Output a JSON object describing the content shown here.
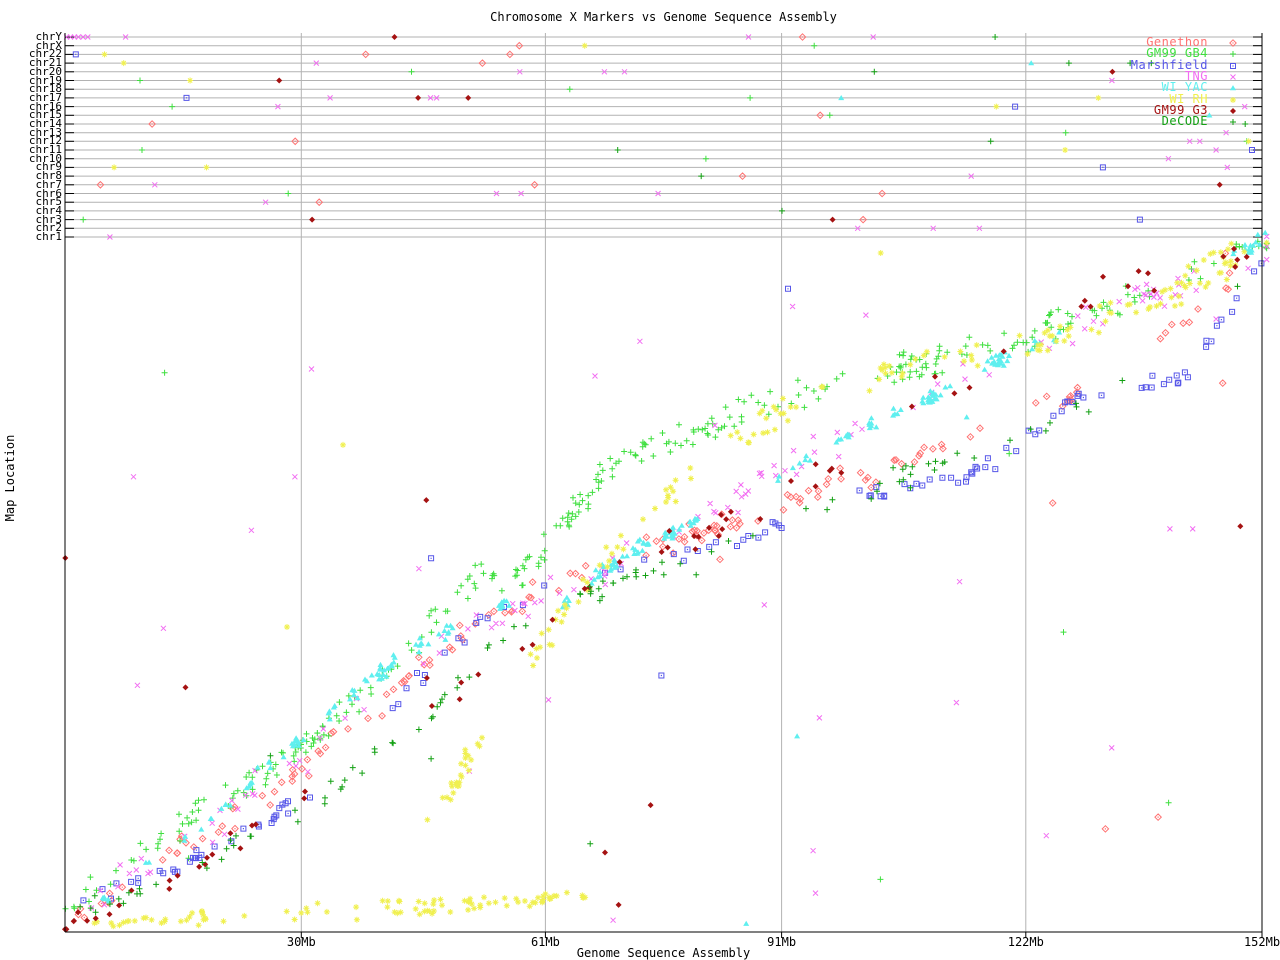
{
  "title": "Chromosome X Markers vs Genome Sequence Assembly",
  "axes": {
    "x_label": "Genome Sequence Assembly",
    "y_label": "Map Location",
    "x_max_mb": 152,
    "x_ticks": [
      {
        "mb": 30,
        "label": "30Mb"
      },
      {
        "mb": 61,
        "label": "61Mb"
      },
      {
        "mb": 91,
        "label": "91Mb"
      },
      {
        "mb": 122,
        "label": "122Mb"
      },
      {
        "mb": 152,
        "label": "152Mb"
      }
    ],
    "x_gridlines_mb": [
      30,
      61,
      91,
      122
    ]
  },
  "chromosomes": [
    "chrY",
    "chrX",
    "chr22",
    "chr21",
    "chr20",
    "chr19",
    "chr18",
    "chr17",
    "chr16",
    "chr15",
    "chr14",
    "chr13",
    "chr12",
    "chr11",
    "chr10",
    "chr9",
    "chr8",
    "chr7",
    "chr6",
    "chr5",
    "chr4",
    "chr3",
    "chr2",
    "chr1"
  ],
  "colors": {
    "axis": "#000000",
    "grid": "#b2b2b2",
    "background": "#ffffff"
  },
  "chart_data": {
    "type": "scatter",
    "title": "Chromosome X Markers vs Genome Sequence Assembly",
    "xlabel": "Genome Sequence Assembly",
    "ylabel": "Map Location",
    "x_range_mb": [
      0,
      152
    ],
    "y_range_frac": [
      0,
      1
    ],
    "legend_position": "top-right",
    "series": [
      {
        "name": "genethon",
        "label": "Genethon",
        "color": "#ff7272",
        "symbol": "open-diamond-dot",
        "in_legend": true,
        "n": 150,
        "jx": 1.8,
        "jy": 0.022,
        "run": 4,
        "spread": 2.5,
        "random_outliers": 6,
        "band_weight": 0.13,
        "trend": [
          [
            0,
            0.02
          ],
          [
            10,
            0.085
          ],
          [
            20,
            0.155
          ],
          [
            30,
            0.235
          ],
          [
            40,
            0.33
          ],
          [
            48,
            0.41
          ],
          [
            55,
            0.46
          ],
          [
            62,
            0.5
          ],
          [
            70,
            0.535
          ],
          [
            78,
            0.565
          ],
          [
            88,
            0.6
          ],
          [
            95,
            0.63
          ],
          [
            102,
            0.66
          ],
          [
            110,
            0.7
          ],
          [
            118,
            0.74
          ],
          [
            126,
            0.765
          ],
          [
            133,
            0.785
          ],
          [
            139,
            0.845
          ],
          [
            145,
            0.905
          ],
          [
            149,
            0.945
          ],
          [
            152,
            0.97
          ]
        ]
      },
      {
        "name": "gm99_gb4",
        "label": "GM99 GB4",
        "color": "#3fdf3f",
        "symbol": "plus",
        "in_legend": true,
        "n": 330,
        "jx": 1.4,
        "jy": 0.028,
        "run": 6,
        "spread": 2.2,
        "random_outliers": 8,
        "band_weight": 0.22,
        "trend": [
          [
            0,
            0.045
          ],
          [
            8,
            0.1
          ],
          [
            16,
            0.165
          ],
          [
            24,
            0.225
          ],
          [
            31,
            0.275
          ],
          [
            38,
            0.345
          ],
          [
            45,
            0.425
          ],
          [
            50,
            0.485
          ],
          [
            53,
            0.52
          ],
          [
            56,
            0.5
          ],
          [
            60,
            0.545
          ],
          [
            64,
            0.6
          ],
          [
            68,
            0.655
          ],
          [
            72,
            0.685
          ],
          [
            76,
            0.7
          ],
          [
            81,
            0.72
          ],
          [
            86,
            0.745
          ],
          [
            91,
            0.765
          ],
          [
            96,
            0.785
          ],
          [
            102,
            0.8
          ],
          [
            109,
            0.82
          ],
          [
            116,
            0.845
          ],
          [
            123,
            0.865
          ],
          [
            131,
            0.895
          ],
          [
            139,
            0.925
          ],
          [
            146,
            0.955
          ],
          [
            152,
            0.995
          ]
        ]
      },
      {
        "name": "marshfield",
        "label": "Marshfield",
        "color": "#5656e8",
        "symbol": "open-square-dot",
        "in_legend": true,
        "n": 125,
        "jx": 1.6,
        "jy": 0.014,
        "run": 5,
        "spread": 3.0,
        "random_outliers": 3,
        "band_weight": 0.07,
        "trend": [
          [
            0,
            0.035
          ],
          [
            10,
            0.075
          ],
          [
            20,
            0.125
          ],
          [
            30,
            0.19
          ],
          [
            38,
            0.27
          ],
          [
            45,
            0.365
          ],
          [
            50,
            0.425
          ],
          [
            56,
            0.465
          ],
          [
            62,
            0.5
          ],
          [
            70,
            0.525
          ],
          [
            78,
            0.545
          ],
          [
            86,
            0.565
          ],
          [
            93,
            0.605
          ],
          [
            100,
            0.63
          ],
          [
            108,
            0.645
          ],
          [
            116,
            0.66
          ],
          [
            124,
            0.73
          ],
          [
            129,
            0.775
          ],
          [
            136,
            0.78
          ],
          [
            142,
            0.8
          ],
          [
            147,
            0.875
          ],
          [
            152,
            0.965
          ]
        ]
      },
      {
        "name": "tng",
        "label": "TNG",
        "color": "#f26df2",
        "symbol": "cross",
        "in_legend": true,
        "n": 125,
        "jx": 2.8,
        "jy": 0.035,
        "run": 4,
        "spread": 3.0,
        "random_outliers": 10,
        "band_weight": 0.24,
        "outlier_points": [
          [
            8.7,
            0.655
          ],
          [
            29.2,
            0.655
          ],
          [
            31.3,
            0.81
          ],
          [
            73,
            0.85
          ],
          [
            67.3,
            0.8
          ],
          [
            92.4,
            0.9
          ],
          [
            61.4,
            0.334
          ],
          [
            69.6,
            0.017
          ],
          [
            95.8,
            0.308
          ],
          [
            95,
            0.117
          ],
          [
            95.3,
            0.056
          ],
          [
            113.2,
            0.33
          ],
          [
            140.3,
            0.58
          ],
          [
            143.2,
            0.58
          ],
          [
            12.5,
            0.437
          ],
          [
            9.2,
            0.355
          ]
        ],
        "trend": [
          [
            0,
            0.015
          ],
          [
            12,
            0.1
          ],
          [
            24,
            0.2
          ],
          [
            34,
            0.29
          ],
          [
            44,
            0.38
          ],
          [
            54,
            0.445
          ],
          [
            64,
            0.5
          ],
          [
            74,
            0.56
          ],
          [
            84,
            0.62
          ],
          [
            94,
            0.68
          ],
          [
            104,
            0.74
          ],
          [
            114,
            0.8
          ],
          [
            124,
            0.85
          ],
          [
            134,
            0.9
          ],
          [
            144,
            0.95
          ],
          [
            152,
            0.99
          ]
        ]
      },
      {
        "name": "wi_yac",
        "label": "WI YAC",
        "color": "#5fefef",
        "symbol": "filled-triangle",
        "in_legend": true,
        "n": 240,
        "jx": 0.7,
        "jy": 0.012,
        "run": 9,
        "spread": 0.8,
        "random_outliers": 2,
        "band_weight": 0.06,
        "outlier_points": [
          [
            86.5,
            0.012
          ]
        ],
        "trend": [
          [
            0,
            0.008
          ],
          [
            10,
            0.09
          ],
          [
            21,
            0.19
          ],
          [
            31,
            0.29
          ],
          [
            43,
            0.4
          ],
          [
            52,
            0.455
          ],
          [
            56,
            0.47
          ],
          [
            61,
            0.445
          ],
          [
            66,
            0.5
          ],
          [
            72,
            0.55
          ],
          [
            80,
            0.59
          ],
          [
            88,
            0.63
          ],
          [
            93,
            0.675
          ],
          [
            100,
            0.72
          ],
          [
            108,
            0.76
          ],
          [
            118,
            0.82
          ],
          [
            127,
            0.86
          ],
          [
            136,
            0.91
          ],
          [
            145,
            0.955
          ],
          [
            152,
            0.995
          ]
        ]
      },
      {
        "name": "wi_rh",
        "label": "WI RH",
        "color": "#f0f050",
        "symbol": "asterisk",
        "in_legend": true,
        "n": 175,
        "jx": 1.6,
        "jy": 0.03,
        "run": 7,
        "spread": 2.0,
        "random_outliers": 3,
        "band_weight": 0.09,
        "trend": [
          [
            44,
            0.14
          ],
          [
            50,
            0.22
          ],
          [
            54,
            0.3
          ],
          [
            57,
            0.36
          ],
          [
            60,
            0.4
          ],
          [
            64,
            0.47
          ],
          [
            68,
            0.53
          ],
          [
            72,
            0.58
          ],
          [
            76,
            0.62
          ],
          [
            80,
            0.66
          ],
          [
            85,
            0.7
          ],
          [
            90,
            0.74
          ],
          [
            95,
            0.77
          ],
          [
            102,
            0.8
          ],
          [
            110,
            0.82
          ],
          [
            118,
            0.835
          ],
          [
            126,
            0.855
          ],
          [
            134,
            0.89
          ],
          [
            142,
            0.93
          ],
          [
            147,
            0.96
          ],
          [
            152,
            0.99
          ]
        ]
      },
      {
        "name": "wi_rh_low",
        "label": "",
        "color": "#f0f050",
        "symbol": "asterisk",
        "in_legend": false,
        "n": 95,
        "jx": 2.0,
        "jy": 0.013,
        "run": 7,
        "spread": 3.0,
        "random_outliers": 0,
        "band_weight": 0,
        "trend": [
          [
            0,
            0.01
          ],
          [
            15,
            0.02
          ],
          [
            30,
            0.03
          ],
          [
            45,
            0.035
          ],
          [
            58,
            0.045
          ],
          [
            67,
            0.05
          ]
        ]
      },
      {
        "name": "gm99_g3",
        "label": "GM99 G3",
        "color": "#a51212",
        "symbol": "filled-diamond",
        "in_legend": true,
        "n": 72,
        "jx": 2.6,
        "jy": 0.03,
        "run": 3,
        "spread": 2.5,
        "random_outliers": 5,
        "band_weight": 0.11,
        "outlier_points": [
          [
            70.3,
            0.039
          ],
          [
            15.3,
            0.352
          ]
        ],
        "trend": [
          [
            0,
            0.012
          ],
          [
            15,
            0.09
          ],
          [
            25,
            0.16
          ],
          [
            35,
            0.24
          ],
          [
            45,
            0.33
          ],
          [
            55,
            0.385
          ],
          [
            65,
            0.48
          ],
          [
            75,
            0.55
          ],
          [
            85,
            0.6
          ],
          [
            95,
            0.655
          ],
          [
            105,
            0.74
          ],
          [
            115,
            0.82
          ],
          [
            125,
            0.88
          ],
          [
            133,
            0.93
          ],
          [
            140,
            0.95
          ],
          [
            146,
            0.97
          ],
          [
            152,
            0.985
          ]
        ]
      },
      {
        "name": "decode",
        "label": "DeCODE",
        "color": "#12a012",
        "symbol": "plus",
        "in_legend": true,
        "n": 105,
        "jx": 1.6,
        "jy": 0.02,
        "run": 4,
        "spread": 2.8,
        "random_outliers": 3,
        "band_weight": 0.08,
        "trend": [
          [
            0,
            0.028
          ],
          [
            10,
            0.062
          ],
          [
            20,
            0.11
          ],
          [
            30,
            0.17
          ],
          [
            40,
            0.26
          ],
          [
            48,
            0.335
          ],
          [
            55,
            0.42
          ],
          [
            62,
            0.465
          ],
          [
            70,
            0.5
          ],
          [
            78,
            0.525
          ],
          [
            85,
            0.555
          ],
          [
            92,
            0.585
          ],
          [
            100,
            0.63
          ],
          [
            107,
            0.66
          ],
          [
            113,
            0.68
          ],
          [
            120,
            0.7
          ],
          [
            127,
            0.745
          ],
          [
            134,
            0.8
          ],
          [
            140,
            0.855
          ],
          [
            146,
            0.91
          ],
          [
            152,
            0.975
          ]
        ]
      }
    ],
    "chrY_cluster": {
      "series": "tng",
      "row": 0,
      "mbs": [
        0.2,
        0.7,
        1.2,
        1.7,
        2.3,
        2.9,
        7.7,
        86.8
      ]
    },
    "band_points": [
      {
        "series": "tng",
        "row": 8,
        "mb": 149.8
      },
      {
        "series": "marshfield",
        "row": 15,
        "mb": 131.8
      },
      {
        "series": "marshfield",
        "row": 21,
        "mb": 136.5
      },
      {
        "series": "wi_rh",
        "row": 13,
        "mb": 127.0
      },
      {
        "series": "gm99_g3",
        "row": 7,
        "mb": 51.2
      },
      {
        "series": "gm99_gb4",
        "row": 7,
        "mb": 87.0
      },
      {
        "series": "tng",
        "row": 23,
        "mb": 5.7
      },
      {
        "series": "gm99_gb4",
        "row": 4,
        "mb": 44.0
      },
      {
        "series": "tng",
        "row": 4,
        "mb": 68.5
      }
    ],
    "band_random_count": 82
  }
}
